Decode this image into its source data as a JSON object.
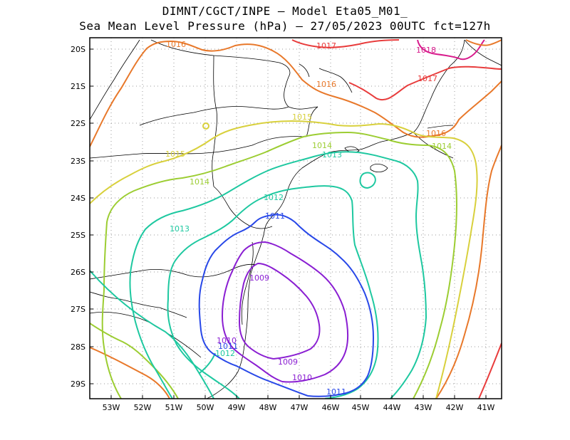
{
  "header": {
    "line1": "DIMNT/CGCT/INPE –  Model Eta05_M01_",
    "line2": "Sea Mean Level Pressure (hPa) – 27/05/2023 00UTC fct=127h"
  },
  "axes": {
    "lon_labels": [
      "53W",
      "52W",
      "51W",
      "50W",
      "49W",
      "48W",
      "47W",
      "46W",
      "45W",
      "44W",
      "43W",
      "42W",
      "41W"
    ],
    "lat_labels": [
      "20S",
      "21S",
      "22S",
      "23S",
      "24S",
      "25S",
      "26S",
      "27S",
      "28S",
      "29S"
    ]
  },
  "isobar_labels": [
    {
      "text": "1016",
      "color": "#e8782a"
    },
    {
      "text": "1017",
      "color": "#e83c3c"
    },
    {
      "text": "1018",
      "color": "#d81b8c"
    },
    {
      "text": "1016",
      "color": "#e8782a"
    },
    {
      "text": "1017",
      "color": "#e83c3c"
    },
    {
      "text": "1015",
      "color": "#d8d03c"
    },
    {
      "text": "1016",
      "color": "#e8782a"
    },
    {
      "text": "1014",
      "color": "#9ccd32"
    },
    {
      "text": "1014",
      "color": "#9ccd32"
    },
    {
      "text": "1013",
      "color": "#1ec8a0"
    },
    {
      "text": "1015",
      "color": "#d8d03c"
    },
    {
      "text": "1014",
      "color": "#9ccd32"
    },
    {
      "text": "1012",
      "color": "#1ec8a0"
    },
    {
      "text": "1011",
      "color": "#2848e8"
    },
    {
      "text": "1013",
      "color": "#1ec8a0"
    },
    {
      "text": "1009",
      "color": "#8a1ed2"
    },
    {
      "text": "1010",
      "color": "#8a1ed2"
    },
    {
      "text": "1011",
      "color": "#2848e8"
    },
    {
      "text": "1012",
      "color": "#1ec8a0"
    },
    {
      "text": "1009",
      "color": "#8a1ed2"
    },
    {
      "text": "1010",
      "color": "#8a1ed2"
    },
    {
      "text": "1011",
      "color": "#2848e8"
    }
  ],
  "colors": {
    "c1009": "#8a1ed2",
    "c1010": "#8a1ed2",
    "c1011": "#2848e8",
    "c1012": "#1ec8a0",
    "c1013": "#1ec8a0",
    "c1014": "#9ccd32",
    "c1015": "#d8d03c",
    "c1016": "#e8782a",
    "c1017": "#e83c3c",
    "c1018": "#d81b8c"
  }
}
